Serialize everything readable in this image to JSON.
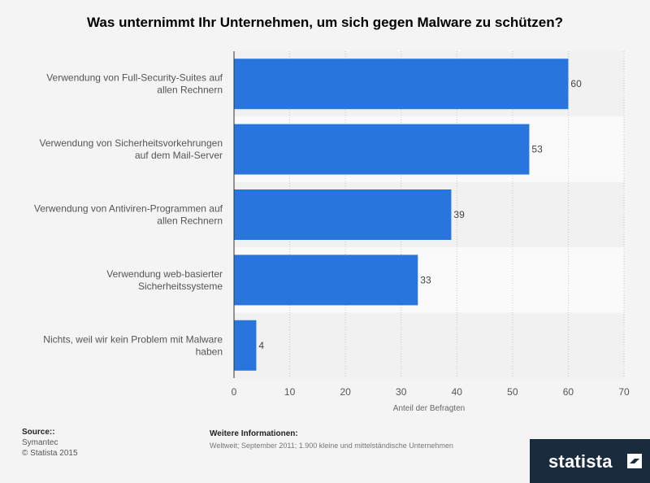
{
  "title": "Was unternimmt Ihr Unternehmen, um sich gegen Malware zu schützen?",
  "chart_data": {
    "type": "bar",
    "orientation": "horizontal",
    "categories": [
      [
        "Verwendung von Full-Security-Suites auf",
        "allen Rechnern"
      ],
      [
        "Verwendung von Sicherheitsvorkehrungen",
        "auf dem Mail-Server"
      ],
      [
        "Verwendung von Antiviren-Programmen auf",
        "allen Rechnern"
      ],
      [
        "Verwendung web-basierter",
        "Sicherheitssysteme"
      ],
      [
        "Nichts, weil wir kein Problem mit Malware",
        "haben"
      ]
    ],
    "values": [
      60,
      53,
      39,
      33,
      4
    ],
    "xlabel": "Anteil der Befragten",
    "ylabel": "",
    "xlim": [
      0,
      70
    ],
    "xticks": [
      0,
      10,
      20,
      30,
      40,
      50,
      60,
      70
    ],
    "grid": true,
    "data_labels": true,
    "bar_color": "#2876dd"
  },
  "footer": {
    "source_heading": "Source::",
    "source_lines": [
      "Symantec",
      "© Statista 2015"
    ],
    "info_heading": "Weitere Informationen:",
    "info_text": "Weltweit; September 2011; 1.900 kleine und mittelständische Unternehmen"
  },
  "logo": {
    "text": "statista"
  }
}
